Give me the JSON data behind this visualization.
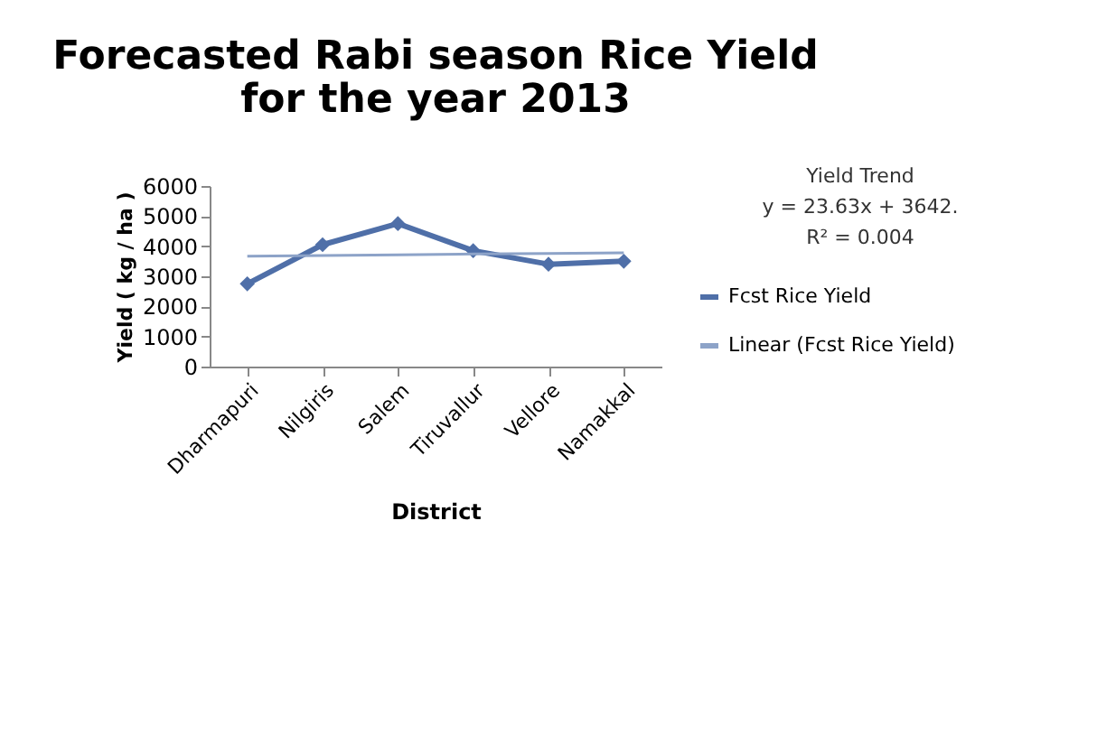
{
  "chart_data": {
    "type": "line",
    "title": "Forecasted  Rabi season Rice Yield for the year 2013",
    "xlabel": "District",
    "ylabel": "Yield ( kg / ha )",
    "categories": [
      "Dharmapuri",
      "Nilgiris",
      "Salem",
      "Tiruvallur",
      "Vellore",
      "Namakkal"
    ],
    "series": [
      {
        "name": "Fcst Rice Yield",
        "color": "#4f6fa8",
        "values": [
          2750,
          4050,
          4750,
          3850,
          3400,
          3500
        ],
        "marker": "diamond",
        "line_style": "solid"
      },
      {
        "name": "Linear (Fcst Rice Yield)",
        "color": "#8da3c8",
        "values": [
          3670,
          3690,
          3710,
          3740,
          3760,
          3780
        ],
        "marker": "none",
        "line_style": "solid"
      }
    ],
    "ylim": [
      0,
      6000
    ],
    "yticks": [
      0,
      1000,
      2000,
      3000,
      4000,
      5000,
      6000
    ],
    "grid": false,
    "legend": "right",
    "annotations": [
      "Yield Trend",
      "y = 23.63x + 3642.",
      "R² = 0.004"
    ]
  }
}
